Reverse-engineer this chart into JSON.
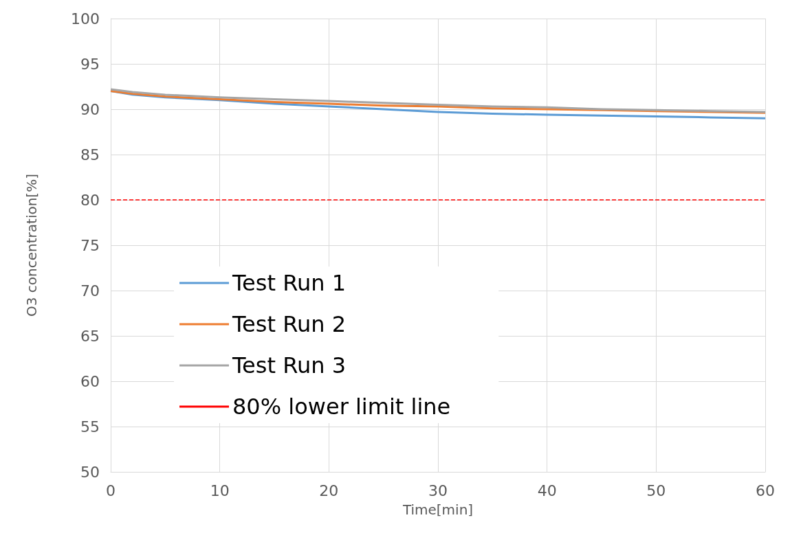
{
  "chart_data": {
    "type": "line",
    "xlabel": "Time[min]",
    "ylabel": "O3 concentration[%]",
    "xlim": [
      0,
      60
    ],
    "xticks": [
      0,
      10,
      20,
      30,
      40,
      50,
      60
    ],
    "ylim": [
      50,
      100
    ],
    "yticks": [
      50,
      55,
      60,
      65,
      70,
      75,
      80,
      85,
      90,
      95,
      100
    ],
    "grid": true,
    "legend": "bottom left",
    "marker": "none",
    "line_style": "solid",
    "x": [
      0,
      2,
      5,
      10,
      15,
      20,
      25,
      30,
      35,
      40,
      45,
      50,
      55,
      60
    ],
    "series": [
      {
        "name": "Test Run 1",
        "color": "#5b9bd5",
        "values": [
          92.0,
          91.6,
          91.3,
          91.0,
          90.6,
          90.3,
          90.0,
          89.7,
          89.5,
          89.4,
          89.3,
          89.2,
          89.1,
          89.0
        ]
      },
      {
        "name": "Test Run 2",
        "color": "#ed7d31",
        "values": [
          92.0,
          91.7,
          91.4,
          91.1,
          90.8,
          90.6,
          90.4,
          90.3,
          90.1,
          90.0,
          89.9,
          89.8,
          89.7,
          89.6
        ]
      },
      {
        "name": "Test Run 3",
        "color": "#a5a5a5",
        "values": [
          92.2,
          91.9,
          91.6,
          91.3,
          91.1,
          90.9,
          90.7,
          90.5,
          90.3,
          90.2,
          90.0,
          89.9,
          89.8,
          89.7
        ]
      }
    ],
    "ref_lines": [
      {
        "axis": "y",
        "value": 80,
        "label": "80% lower limit line",
        "color": "#ff0000",
        "line_style": "dashed"
      }
    ]
  }
}
